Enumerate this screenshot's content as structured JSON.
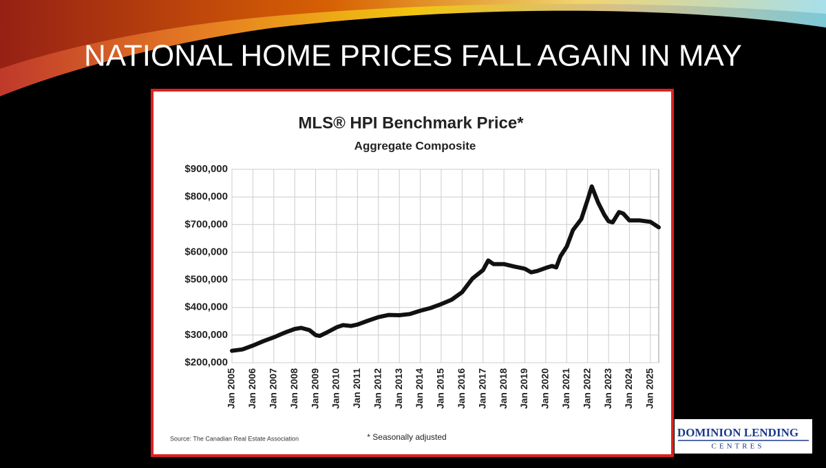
{
  "slide": {
    "title": "NATIONAL HOME PRICES FALL AGAIN IN MAY"
  },
  "chart_data": {
    "type": "line",
    "title": "MLS® HPI Benchmark Price*",
    "subtitle": "Aggregate Composite",
    "source": "Source: The Canadian Real Estate Association",
    "note": "* Seasonally adjusted",
    "x": [
      2005.0,
      2005.5,
      2006.0,
      2006.5,
      2007.0,
      2007.5,
      2008.0,
      2008.3,
      2008.7,
      2009.0,
      2009.2,
      2009.5,
      2010.0,
      2010.3,
      2010.7,
      2011.0,
      2011.5,
      2012.0,
      2012.5,
      2013.0,
      2013.5,
      2014.0,
      2014.5,
      2015.0,
      2015.5,
      2016.0,
      2016.5,
      2017.0,
      2017.25,
      2017.5,
      2018.0,
      2018.5,
      2019.0,
      2019.3,
      2019.6,
      2020.0,
      2020.3,
      2020.5,
      2020.7,
      2021.0,
      2021.3,
      2021.7,
      2022.0,
      2022.2,
      2022.5,
      2022.8,
      2023.0,
      2023.2,
      2023.5,
      2023.7,
      2024.0,
      2024.5,
      2025.0,
      2025.4
    ],
    "series": [
      {
        "color": "#111111",
        "values": [
          243000,
          248000,
          262000,
          278000,
          292000,
          308000,
          322000,
          326000,
          318000,
          300000,
          297000,
          308000,
          328000,
          336000,
          333000,
          338000,
          352000,
          365000,
          373000,
          372000,
          376000,
          388000,
          398000,
          412000,
          428000,
          455000,
          505000,
          535000,
          570000,
          557000,
          557000,
          548000,
          540000,
          527000,
          532000,
          543000,
          550000,
          545000,
          585000,
          620000,
          680000,
          720000,
          790000,
          838000,
          780000,
          735000,
          712000,
          708000,
          745000,
          740000,
          715000,
          715000,
          710000,
          690000
        ]
      }
    ],
    "xlim": [
      2005,
      2025.4
    ],
    "ylim": [
      200000,
      900000
    ],
    "xticks": [
      {
        "value": 2005,
        "label": "Jan 2005"
      },
      {
        "value": 2006,
        "label": "Jan 2006"
      },
      {
        "value": 2007,
        "label": "Jan 2007"
      },
      {
        "value": 2008,
        "label": "Jan 2008"
      },
      {
        "value": 2009,
        "label": "Jan 2009"
      },
      {
        "value": 2010,
        "label": "Jan 2010"
      },
      {
        "value": 2011,
        "label": "Jan 2011"
      },
      {
        "value": 2012,
        "label": "Jan 2012"
      },
      {
        "value": 2013,
        "label": "Jan 2013"
      },
      {
        "value": 2014,
        "label": "Jan 2014"
      },
      {
        "value": 2015,
        "label": "Jan 2015"
      },
      {
        "value": 2016,
        "label": "Jan 2016"
      },
      {
        "value": 2017,
        "label": "Jan 2017"
      },
      {
        "value": 2018,
        "label": "Jan 2018"
      },
      {
        "value": 2019,
        "label": "Jan 2019"
      },
      {
        "value": 2020,
        "label": "Jan 2020"
      },
      {
        "value": 2021,
        "label": "Jan 2021"
      },
      {
        "value": 2022,
        "label": "Jan 2022"
      },
      {
        "value": 2023,
        "label": "Jan 2023"
      },
      {
        "value": 2024,
        "label": "Jan 2024"
      },
      {
        "value": 2025,
        "label": "Jan 2025"
      }
    ],
    "yticks": [
      {
        "value": 200000,
        "label": "$200,000"
      },
      {
        "value": 300000,
        "label": "$300,000"
      },
      {
        "value": 400000,
        "label": "$400,000"
      },
      {
        "value": 500000,
        "label": "$500,000"
      },
      {
        "value": 600000,
        "label": "$600,000"
      },
      {
        "value": 700000,
        "label": "$700,000"
      },
      {
        "value": 800000,
        "label": "$800,000"
      },
      {
        "value": 900000,
        "label": "$900,000"
      }
    ],
    "grid": true
  },
  "logo": {
    "line1": "DOMINION LENDING",
    "line2": "CENTRES"
  }
}
